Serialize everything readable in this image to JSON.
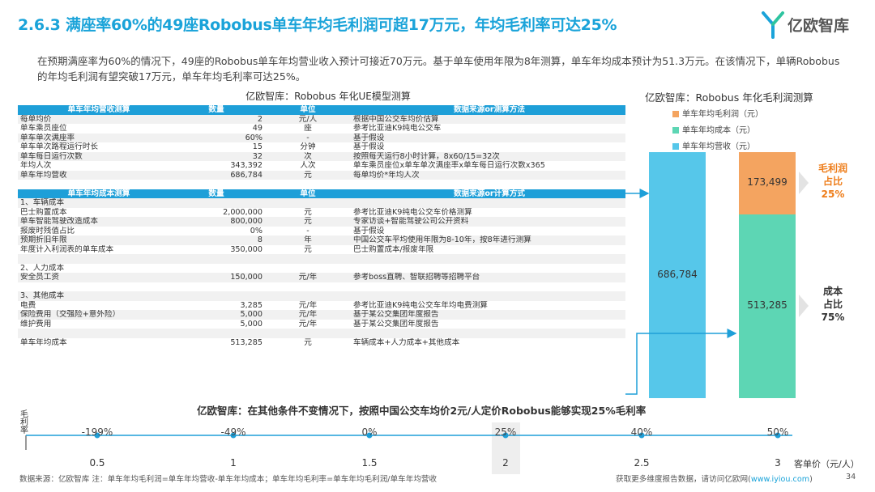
{
  "header": {
    "title": "2.6.3 满座率60%的49座Robobus单车年均毛利润可超17万元，年均毛利率可达25%",
    "logo_text": "亿欧智库"
  },
  "intro": "在预期满座率为60%的情况下，49座的Robobus单车年均营业收入预计可接近70万元。基于单车使用年限为8年测算，单车年均成本预计为51.3万元。在该情况下，单辆Robobus的年均毛利润有望突破17万元，单车年均毛利率可达25%。",
  "table": {
    "title": "亿欧智库：Robobus 年化UE模型测算",
    "revenue_header": [
      "单车年均营收测算",
      "数量",
      "单位",
      "数据来源or测算方法"
    ],
    "revenue_rows": [
      [
        "每单均价",
        "2",
        "元/人",
        "根据中国公交车均价估算"
      ],
      [
        "单车乘员座位",
        "49",
        "座",
        "参考比亚迪K9纯电公交车"
      ],
      [
        "单车单次满座率",
        "60%",
        "-",
        "基于假设"
      ],
      [
        "单车单次路程运行时长",
        "15",
        "分钟",
        "基于假设"
      ],
      [
        "单车每日运行次数",
        "32",
        "次",
        "按照每天运行8小时计算，8x60/15=32次"
      ],
      [
        "年均人次",
        "343,392",
        "人次",
        "单车乘员座位x单车单次满座率x单车每日运行次数x365"
      ],
      [
        "单车年均营收",
        "686,784",
        "元",
        "每单均价*年均人次"
      ]
    ],
    "cost_header": [
      "单车年均成本测算",
      "数量",
      "单位",
      "数据来源or计算方式"
    ],
    "cost_rows": [
      [
        "1、车辆成本",
        "",
        "",
        ""
      ],
      [
        "巴士购置成本",
        "2,000,000",
        "元",
        "参考比亚迪K9纯电公交车价格测算"
      ],
      [
        "单车智能驾驶改造成本",
        "800,000",
        "元",
        "专家访谈+智能驾驶公司公开资料"
      ],
      [
        "报废时残值占比",
        "0%",
        "-",
        "基于假设"
      ],
      [
        "预期折旧年限",
        "8",
        "年",
        "中国公交车平均使用年限为8-10年，按8年进行测算"
      ],
      [
        "年度计入利润表的单车成本",
        "350,000",
        "元",
        "巴士购置成本/报废年限"
      ],
      [
        "",
        "",
        "",
        ""
      ],
      [
        "2、人力成本",
        "",
        "",
        ""
      ],
      [
        "安全员工资",
        "150,000",
        "元/年",
        "参考boss直聘、智联招聘等招聘平台"
      ],
      [
        "",
        "",
        "",
        ""
      ],
      [
        "3、其他成本",
        "",
        "",
        ""
      ],
      [
        "电费",
        "3,285",
        "元/年",
        "参考比亚迪K9纯电公交车年均电费测算"
      ],
      [
        "保险费用（交强险+意外险）",
        "5,000",
        "元/年",
        "基于某公交集团年度报告"
      ],
      [
        "维护费用",
        "5,000",
        "元/年",
        "基于某公交集团年度报告"
      ],
      [
        "",
        "",
        "",
        ""
      ],
      [
        "单车年均成本",
        "513,285",
        "元",
        "车辆成本+人力成本+其他成本"
      ]
    ]
  },
  "right_chart": {
    "title": "亿欧智库：Robobus 年化毛利润测算",
    "legend": [
      {
        "label": "单车年均毛利润（元）",
        "color": "#f4a460"
      },
      {
        "label": "单车年均成本（元）",
        "color": "#5dd6b4"
      },
      {
        "label": "单车年均营收（元）",
        "color": "#56c7ea"
      }
    ],
    "revenue_label": "686,784",
    "cost_label": "513,285",
    "profit_label": "173,499",
    "profit_side": [
      "毛利润",
      "占比",
      "25%"
    ],
    "cost_side": [
      "成本",
      "占比",
      "75%"
    ],
    "colors": {
      "profit_text": "#ee7d1a",
      "cost_text": "#333333"
    }
  },
  "chart_data": {
    "type": "bar",
    "title": "亿欧智库：Robobus 年化毛利润测算",
    "series": [
      {
        "name": "单车年均营收（元）",
        "values": [
          686784
        ]
      },
      {
        "name": "单车年均成本（元）",
        "values": [
          513285
        ]
      },
      {
        "name": "单车年均毛利润（元）",
        "values": [
          173499
        ]
      }
    ],
    "stacked_second_bar": {
      "cost": 513285,
      "profit": 173499
    },
    "share_labels": {
      "profit": "25%",
      "cost": "75%"
    }
  },
  "bottom": {
    "title": "亿欧智库：在其他条件不变情况下，按照中国公交车均价2元/人定价Robobus能够实现25%毛利率",
    "y_axis_label": "毛利率",
    "x_unit": "客单价（元/人）",
    "points": [
      {
        "price": "0.5",
        "margin": "-199%"
      },
      {
        "price": "1",
        "margin": "-49%"
      },
      {
        "price": "1.5",
        "margin": "0%"
      },
      {
        "price": "2",
        "margin": "25%"
      },
      {
        "price": "2.5",
        "margin": "40%"
      },
      {
        "price": "3",
        "margin": "50%"
      }
    ]
  },
  "footer": {
    "source": "数据来源：亿欧智库    注：单车年均毛利润=单车年均营收-单车年均成本；单车年均毛利率=单车年均毛利润/单车年均营收",
    "more_prefix": "获取更多维度报告数据，请访问亿欧网(",
    "more_link": "www.iyiou.com",
    "more_suffix": ")",
    "page": "34"
  }
}
